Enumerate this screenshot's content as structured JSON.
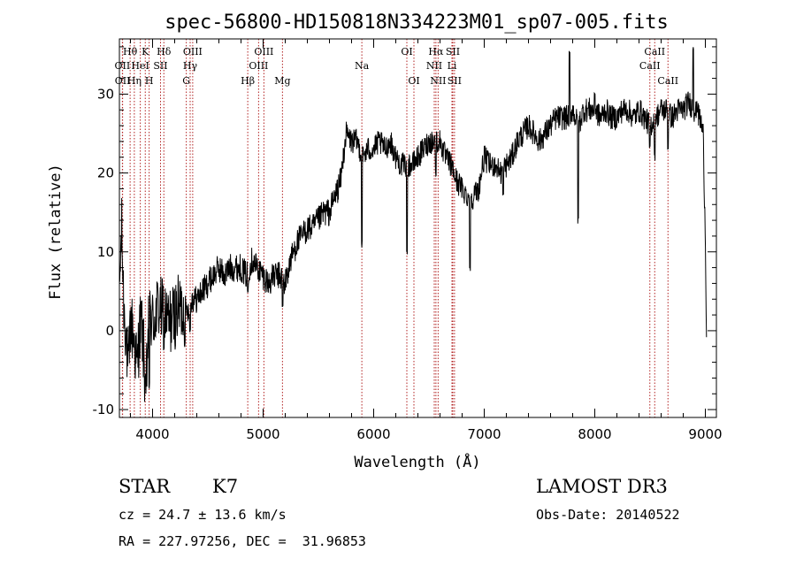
{
  "chart_data": {
    "type": "line",
    "title": "spec-56800-HD150818N334223M01_sp07-005.fits",
    "xlabel": "Wavelength (Å)",
    "ylabel": "Flux (relative)",
    "xlim": [
      3700,
      9100
    ],
    "ylim": [
      -11,
      37
    ],
    "xticks": [
      4000,
      5000,
      6000,
      7000,
      8000,
      9000
    ],
    "yticks": [
      -10,
      0,
      10,
      20,
      30
    ],
    "spectrum": {
      "name": "flux",
      "anchors": [
        [
          3700,
          5
        ],
        [
          3720,
          13
        ],
        [
          3740,
          3
        ],
        [
          3760,
          0
        ],
        [
          3780,
          -6
        ],
        [
          3800,
          1
        ],
        [
          3820,
          0
        ],
        [
          3840,
          -2
        ],
        [
          3860,
          -5
        ],
        [
          3880,
          0
        ],
        [
          3900,
          1
        ],
        [
          3920,
          -3
        ],
        [
          3940,
          -8
        ],
        [
          3960,
          0
        ],
        [
          3980,
          2
        ],
        [
          4000,
          1
        ],
        [
          4050,
          3
        ],
        [
          4100,
          2
        ],
        [
          4150,
          1
        ],
        [
          4200,
          2
        ],
        [
          4250,
          3
        ],
        [
          4300,
          2
        ],
        [
          4350,
          4
        ],
        [
          4400,
          4
        ],
        [
          4450,
          5
        ],
        [
          4500,
          6
        ],
        [
          4550,
          7
        ],
        [
          4600,
          8
        ],
        [
          4650,
          7
        ],
        [
          4700,
          8
        ],
        [
          4750,
          8
        ],
        [
          4800,
          8
        ],
        [
          4850,
          7
        ],
        [
          4900,
          9
        ],
        [
          4950,
          8
        ],
        [
          5000,
          7
        ],
        [
          5050,
          6
        ],
        [
          5100,
          7
        ],
        [
          5150,
          7
        ],
        [
          5200,
          6
        ],
        [
          5250,
          9
        ],
        [
          5300,
          11
        ],
        [
          5350,
          12
        ],
        [
          5400,
          13
        ],
        [
          5450,
          13
        ],
        [
          5500,
          14
        ],
        [
          5550,
          15
        ],
        [
          5600,
          15
        ],
        [
          5650,
          17
        ],
        [
          5700,
          19
        ],
        [
          5750,
          25
        ],
        [
          5800,
          24
        ],
        [
          5850,
          24
        ],
        [
          5900,
          22
        ],
        [
          5950,
          23
        ],
        [
          6000,
          23
        ],
        [
          6050,
          24
        ],
        [
          6100,
          23
        ],
        [
          6150,
          24
        ],
        [
          6200,
          22
        ],
        [
          6250,
          21
        ],
        [
          6300,
          21
        ],
        [
          6350,
          21
        ],
        [
          6400,
          22
        ],
        [
          6450,
          23
        ],
        [
          6500,
          24
        ],
        [
          6550,
          24
        ],
        [
          6600,
          24
        ],
        [
          6650,
          22
        ],
        [
          6700,
          21
        ],
        [
          6750,
          19
        ],
        [
          6800,
          18
        ],
        [
          6850,
          17
        ],
        [
          6900,
          17
        ],
        [
          6950,
          18
        ],
        [
          7000,
          22
        ],
        [
          7050,
          21
        ],
        [
          7100,
          21
        ],
        [
          7150,
          20
        ],
        [
          7200,
          21
        ],
        [
          7250,
          22
        ],
        [
          7300,
          24
        ],
        [
          7350,
          25
        ],
        [
          7400,
          26
        ],
        [
          7450,
          25
        ],
        [
          7500,
          24
        ],
        [
          7550,
          25
        ],
        [
          7600,
          26
        ],
        [
          7650,
          27
        ],
        [
          7700,
          27
        ],
        [
          7750,
          27
        ],
        [
          7800,
          28
        ],
        [
          7850,
          26
        ],
        [
          7900,
          28
        ],
        [
          7950,
          28
        ],
        [
          8000,
          28
        ],
        [
          8050,
          27
        ],
        [
          8100,
          28
        ],
        [
          8150,
          27
        ],
        [
          8200,
          27
        ],
        [
          8250,
          28
        ],
        [
          8300,
          28
        ],
        [
          8350,
          27
        ],
        [
          8400,
          28
        ],
        [
          8450,
          27
        ],
        [
          8500,
          26
        ],
        [
          8550,
          27
        ],
        [
          8600,
          28
        ],
        [
          8650,
          28
        ],
        [
          8700,
          27
        ],
        [
          8750,
          28
        ],
        [
          8800,
          28
        ],
        [
          8850,
          29
        ],
        [
          8900,
          28
        ],
        [
          8950,
          27
        ],
        [
          8980,
          25
        ],
        [
          9000,
          12
        ],
        [
          9010,
          0
        ]
      ],
      "features": [
        [
          3934,
          -6
        ],
        [
          3969,
          -7
        ],
        [
          4102,
          -2
        ],
        [
          4340,
          0
        ],
        [
          4861,
          5
        ],
        [
          5175,
          3
        ],
        [
          5893,
          11
        ],
        [
          6300,
          10
        ],
        [
          6563,
          20
        ],
        [
          6870,
          8
        ],
        [
          7170,
          17
        ],
        [
          7770,
          35
        ],
        [
          7850,
          14
        ],
        [
          8000,
          30
        ],
        [
          8498,
          23
        ],
        [
          8542,
          22
        ],
        [
          8662,
          23
        ],
        [
          8890,
          36
        ],
        [
          8930,
          28
        ]
      ]
    },
    "spectral_lines": [
      {
        "name": "Hθ",
        "wavelength": 3797,
        "row": 1
      },
      {
        "name": "OII",
        "wavelength": 3727,
        "row": 2
      },
      {
        "name": "OII",
        "wavelength": 3729,
        "row": 3
      },
      {
        "name": "Hη",
        "wavelength": 3835,
        "row": 3
      },
      {
        "name": "HeI",
        "wavelength": 3889,
        "row": 2
      },
      {
        "name": "K",
        "wavelength": 3934,
        "row": 1
      },
      {
        "name": "H",
        "wavelength": 3969,
        "row": 3
      },
      {
        "name": "SII",
        "wavelength": 4072,
        "row": 2
      },
      {
        "name": "Hδ",
        "wavelength": 4102,
        "row": 1
      },
      {
        "name": "OIII",
        "wavelength": 4363,
        "row": 1
      },
      {
        "name": "Hγ",
        "wavelength": 4340,
        "row": 2
      },
      {
        "name": "G",
        "wavelength": 4305,
        "row": 3
      },
      {
        "name": "Hβ",
        "wavelength": 4861,
        "row": 3
      },
      {
        "name": "OIII",
        "wavelength": 5007,
        "row": 1
      },
      {
        "name": "OIII",
        "wavelength": 4959,
        "row": 2
      },
      {
        "name": "Mg",
        "wavelength": 5175,
        "row": 3
      },
      {
        "name": "Na",
        "wavelength": 5893,
        "row": 2
      },
      {
        "name": "OI",
        "wavelength": 6300,
        "row": 1
      },
      {
        "name": "OI",
        "wavelength": 6364,
        "row": 3
      },
      {
        "name": "Hα",
        "wavelength": 6563,
        "row": 1
      },
      {
        "name": "NII",
        "wavelength": 6548,
        "row": 2
      },
      {
        "name": "NII",
        "wavelength": 6583,
        "row": 3
      },
      {
        "name": "SII",
        "wavelength": 6716,
        "row": 1
      },
      {
        "name": "Li",
        "wavelength": 6708,
        "row": 2
      },
      {
        "name": "SII",
        "wavelength": 6731,
        "row": 3
      },
      {
        "name": "CaII",
        "wavelength": 8542,
        "row": 1
      },
      {
        "name": "CaII",
        "wavelength": 8498,
        "row": 2
      },
      {
        "name": "CaII",
        "wavelength": 8662,
        "row": 3
      }
    ],
    "line_color": "#000000",
    "marker_color": "#b22222"
  },
  "info": {
    "class": "STAR",
    "subclass": "K7",
    "redshift": "cz = 24.7 ± 13.6 km/s",
    "coords": "RA = 227.97256, DEC =  31.96853",
    "survey": "LAMOST DR3",
    "obs_date": "Obs-Date: 20140522"
  }
}
